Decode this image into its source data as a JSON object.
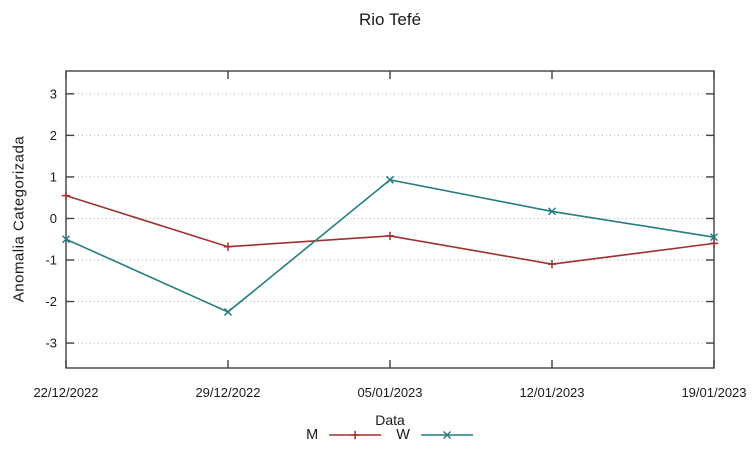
{
  "title": "Rio Tefé",
  "colors": {
    "series_m": "#a02f2f",
    "series_w": "#257d7d",
    "grid": "#b4b4b4",
    "axis_border": "#404040",
    "text": "#1a1a1a"
  },
  "chart_data": {
    "type": "line",
    "title": "Rio Tefé",
    "xlabel": "Data",
    "ylabel": "Anomalia Categorizada",
    "categories": [
      "22/12/2022",
      "29/12/2022",
      "05/01/2023",
      "12/01/2023",
      "19/01/2023"
    ],
    "series": [
      {
        "name": "M",
        "color": "#a02f2f",
        "marker": "plus",
        "values": [
          0.55,
          -0.68,
          -0.42,
          -1.1,
          -0.6
        ]
      },
      {
        "name": "W",
        "color": "#257d7d",
        "marker": "cross",
        "values": [
          -0.5,
          -2.25,
          0.93,
          0.17,
          -0.45
        ]
      }
    ],
    "yticks": [
      3,
      2,
      1,
      0,
      -1,
      -2,
      -3
    ],
    "ylim": [
      -3.6,
      3.55
    ],
    "grid": "horizontal-dotted",
    "legend_position": "bottom-center"
  }
}
